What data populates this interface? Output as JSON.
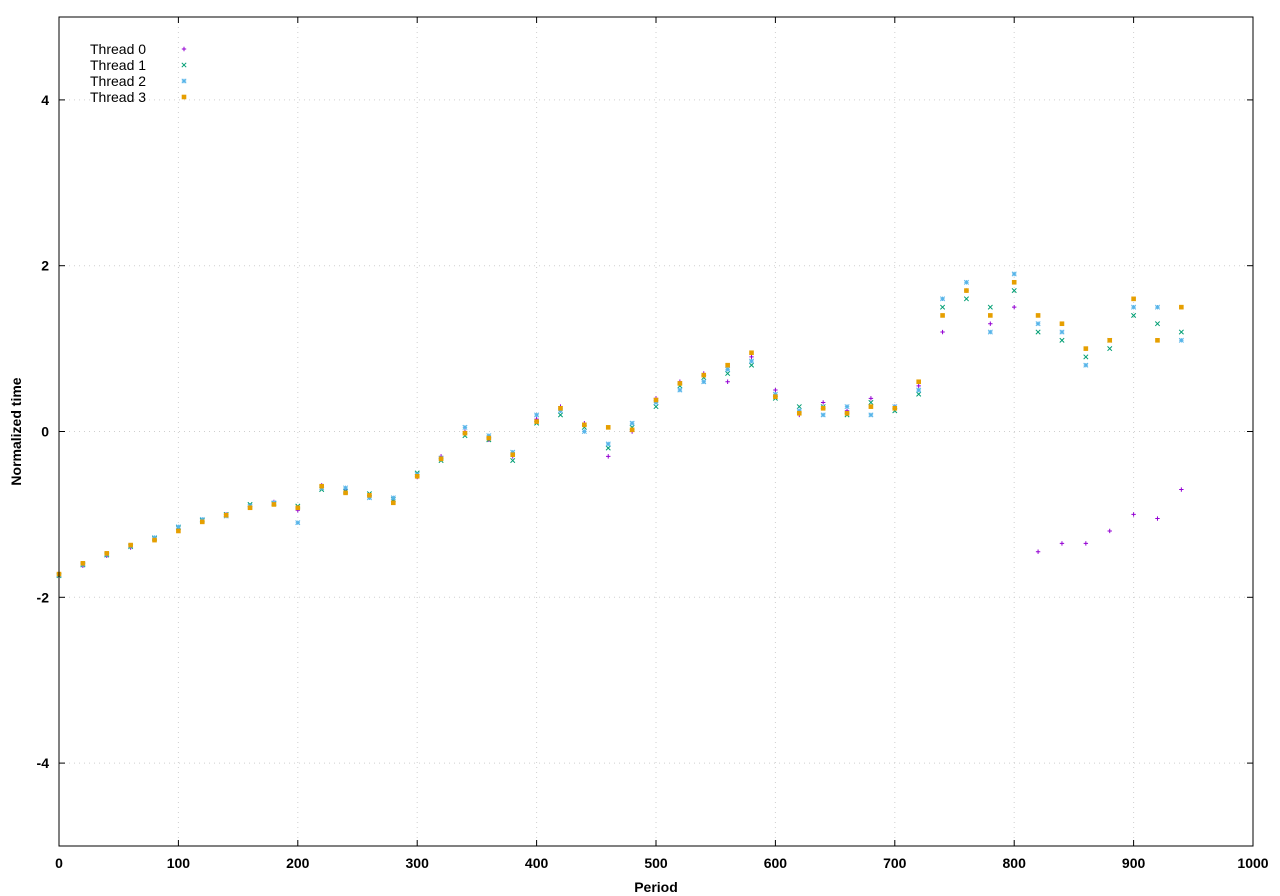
{
  "chart_data": {
    "type": "scatter",
    "title": "",
    "xlabel": "Period",
    "ylabel": "Normalized time",
    "xlim": [
      0,
      1000
    ],
    "ylim": [
      -5,
      5
    ],
    "x_ticks": [
      0,
      100,
      200,
      300,
      400,
      500,
      600,
      700,
      800,
      900,
      1000
    ],
    "y_ticks": [
      -4,
      -2,
      0,
      2,
      4
    ],
    "grid": true,
    "legend_position": "top-left",
    "series": [
      {
        "name": "Thread 0",
        "color": "#9400d3",
        "marker": "plus",
        "x": [
          0,
          20,
          40,
          60,
          80,
          100,
          120,
          140,
          160,
          180,
          200,
          220,
          240,
          260,
          280,
          300,
          320,
          340,
          360,
          380,
          400,
          420,
          440,
          460,
          480,
          500,
          520,
          540,
          560,
          580,
          600,
          620,
          640,
          660,
          680,
          700,
          720,
          740,
          760,
          780,
          800,
          820,
          840,
          860,
          880,
          900,
          920,
          940
        ],
        "y": [
          -1.75,
          -1.62,
          -1.5,
          -1.4,
          -1.3,
          -1.18,
          -1.08,
          -1.0,
          -0.9,
          -0.85,
          -0.95,
          -0.65,
          -0.7,
          -0.78,
          -0.85,
          -0.55,
          -0.3,
          0.0,
          -0.1,
          -0.3,
          0.15,
          0.3,
          0.1,
          -0.3,
          0.0,
          0.4,
          0.6,
          0.7,
          0.6,
          0.9,
          0.5,
          0.2,
          0.35,
          0.25,
          0.4,
          0.3,
          0.55,
          1.2,
          1.7,
          1.3,
          1.5,
          -1.45,
          -1.35,
          -1.35,
          -1.2,
          -1.0,
          -1.05,
          -0.7
        ]
      },
      {
        "name": "Thread 1",
        "color": "#009e73",
        "marker": "x",
        "x": [
          0,
          20,
          40,
          60,
          80,
          100,
          120,
          140,
          160,
          180,
          200,
          220,
          240,
          260,
          280,
          300,
          320,
          340,
          360,
          380,
          400,
          420,
          440,
          460,
          480,
          500,
          520,
          540,
          560,
          580,
          600,
          620,
          640,
          660,
          680,
          700,
          720,
          740,
          760,
          780,
          800,
          820,
          840,
          860,
          880,
          900,
          920,
          940
        ],
        "y": [
          -1.74,
          -1.61,
          -1.49,
          -1.39,
          -1.29,
          -1.16,
          -1.07,
          -1.0,
          -0.88,
          -0.87,
          -0.9,
          -0.7,
          -0.72,
          -0.75,
          -0.82,
          -0.5,
          -0.35,
          -0.05,
          -0.1,
          -0.35,
          0.1,
          0.2,
          0.05,
          -0.2,
          0.05,
          0.3,
          0.55,
          0.65,
          0.7,
          0.8,
          0.4,
          0.3,
          0.3,
          0.2,
          0.35,
          0.25,
          0.45,
          1.5,
          1.6,
          1.5,
          1.7,
          1.2,
          1.1,
          0.9,
          1.0,
          1.4,
          1.3,
          1.2
        ]
      },
      {
        "name": "Thread 2",
        "color": "#56b4e9",
        "marker": "star",
        "x": [
          0,
          20,
          40,
          60,
          80,
          100,
          120,
          140,
          160,
          180,
          200,
          220,
          240,
          260,
          280,
          300,
          320,
          340,
          360,
          380,
          400,
          420,
          440,
          460,
          480,
          500,
          520,
          540,
          560,
          580,
          600,
          620,
          640,
          660,
          680,
          700,
          720,
          740,
          760,
          780,
          800,
          820,
          840,
          860,
          880,
          900,
          920,
          940
        ],
        "y": [
          -1.73,
          -1.6,
          -1.48,
          -1.38,
          -1.28,
          -1.15,
          -1.06,
          -1.02,
          -0.9,
          -0.86,
          -1.1,
          -0.68,
          -0.68,
          -0.8,
          -0.8,
          -0.52,
          -0.32,
          0.05,
          -0.05,
          -0.25,
          0.2,
          0.25,
          0.0,
          -0.15,
          0.1,
          0.35,
          0.5,
          0.6,
          0.75,
          0.85,
          0.45,
          0.25,
          0.2,
          0.3,
          0.2,
          0.3,
          0.5,
          1.6,
          1.8,
          1.2,
          1.9,
          1.3,
          1.2,
          0.8,
          1.1,
          1.5,
          1.5,
          1.1
        ]
      },
      {
        "name": "Thread 3",
        "color": "#e69f00",
        "marker": "box",
        "x": [
          0,
          20,
          40,
          60,
          80,
          100,
          120,
          140,
          160,
          180,
          200,
          220,
          240,
          260,
          280,
          300,
          320,
          340,
          360,
          380,
          400,
          420,
          440,
          460,
          480,
          500,
          520,
          540,
          560,
          580,
          600,
          620,
          640,
          660,
          680,
          700,
          720,
          740,
          760,
          780,
          800,
          820,
          840,
          860,
          880,
          900,
          920,
          940
        ],
        "y": [
          -1.72,
          -1.59,
          -1.47,
          -1.37,
          -1.31,
          -1.2,
          -1.09,
          -1.01,
          -0.92,
          -0.88,
          -0.92,
          -0.66,
          -0.74,
          -0.77,
          -0.86,
          -0.54,
          -0.33,
          -0.02,
          -0.08,
          -0.28,
          0.12,
          0.28,
          0.08,
          0.05,
          0.02,
          0.38,
          0.58,
          0.68,
          0.8,
          0.95,
          0.42,
          0.22,
          0.28,
          0.22,
          0.3,
          0.28,
          0.6,
          1.4,
          1.7,
          1.4,
          1.8,
          1.4,
          1.3,
          1.0,
          1.1,
          1.6,
          1.1,
          1.5
        ]
      }
    ]
  }
}
